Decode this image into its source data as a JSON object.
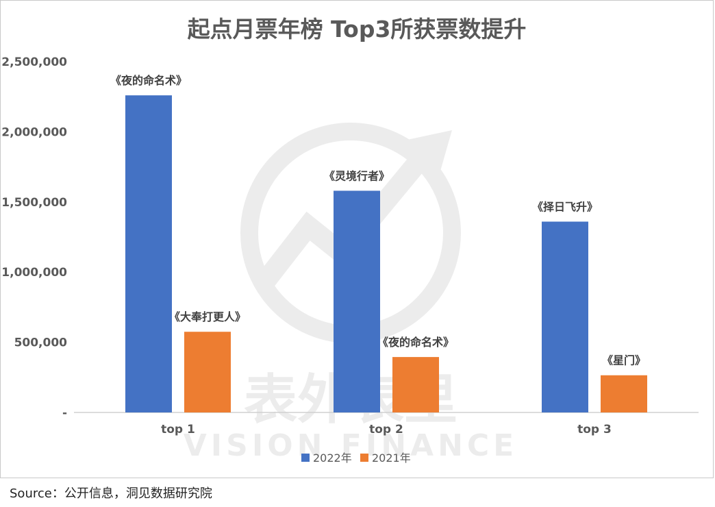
{
  "chart_data": {
    "type": "bar",
    "title": "起点月票年榜 Top3所获票数提升",
    "categories": [
      "top 1",
      "top 2",
      "top 3"
    ],
    "series": [
      {
        "name": "2022年",
        "color": "#4472c4",
        "values": [
          2260000,
          1580000,
          1360000
        ],
        "labels": [
          "《夜的命名术》",
          "《灵境行者》",
          "《择日飞升》"
        ]
      },
      {
        "name": "2021年",
        "color": "#ed7d31",
        "values": [
          575000,
          395000,
          265000
        ],
        "labels": [
          "《大奉打更人》",
          "《夜的命名术》",
          "《星门》"
        ]
      }
    ],
    "yticks": [
      {
        "value": 0,
        "label": "-"
      },
      {
        "value": 500000,
        "label": "500,000"
      },
      {
        "value": 1000000,
        "label": "1,000,000"
      },
      {
        "value": 1500000,
        "label": "1,500,000"
      },
      {
        "value": 2000000,
        "label": "2,000,000"
      },
      {
        "value": 2500000,
        "label": "2,500,000"
      }
    ],
    "ylim": [
      0,
      2500000
    ],
    "grid": false,
    "legend_position": "bottom"
  },
  "watermark": {
    "text_cn": "表外表里",
    "text_en": "VISION FINANCE"
  },
  "source": "Source：公开信息，洞见数据研究院"
}
